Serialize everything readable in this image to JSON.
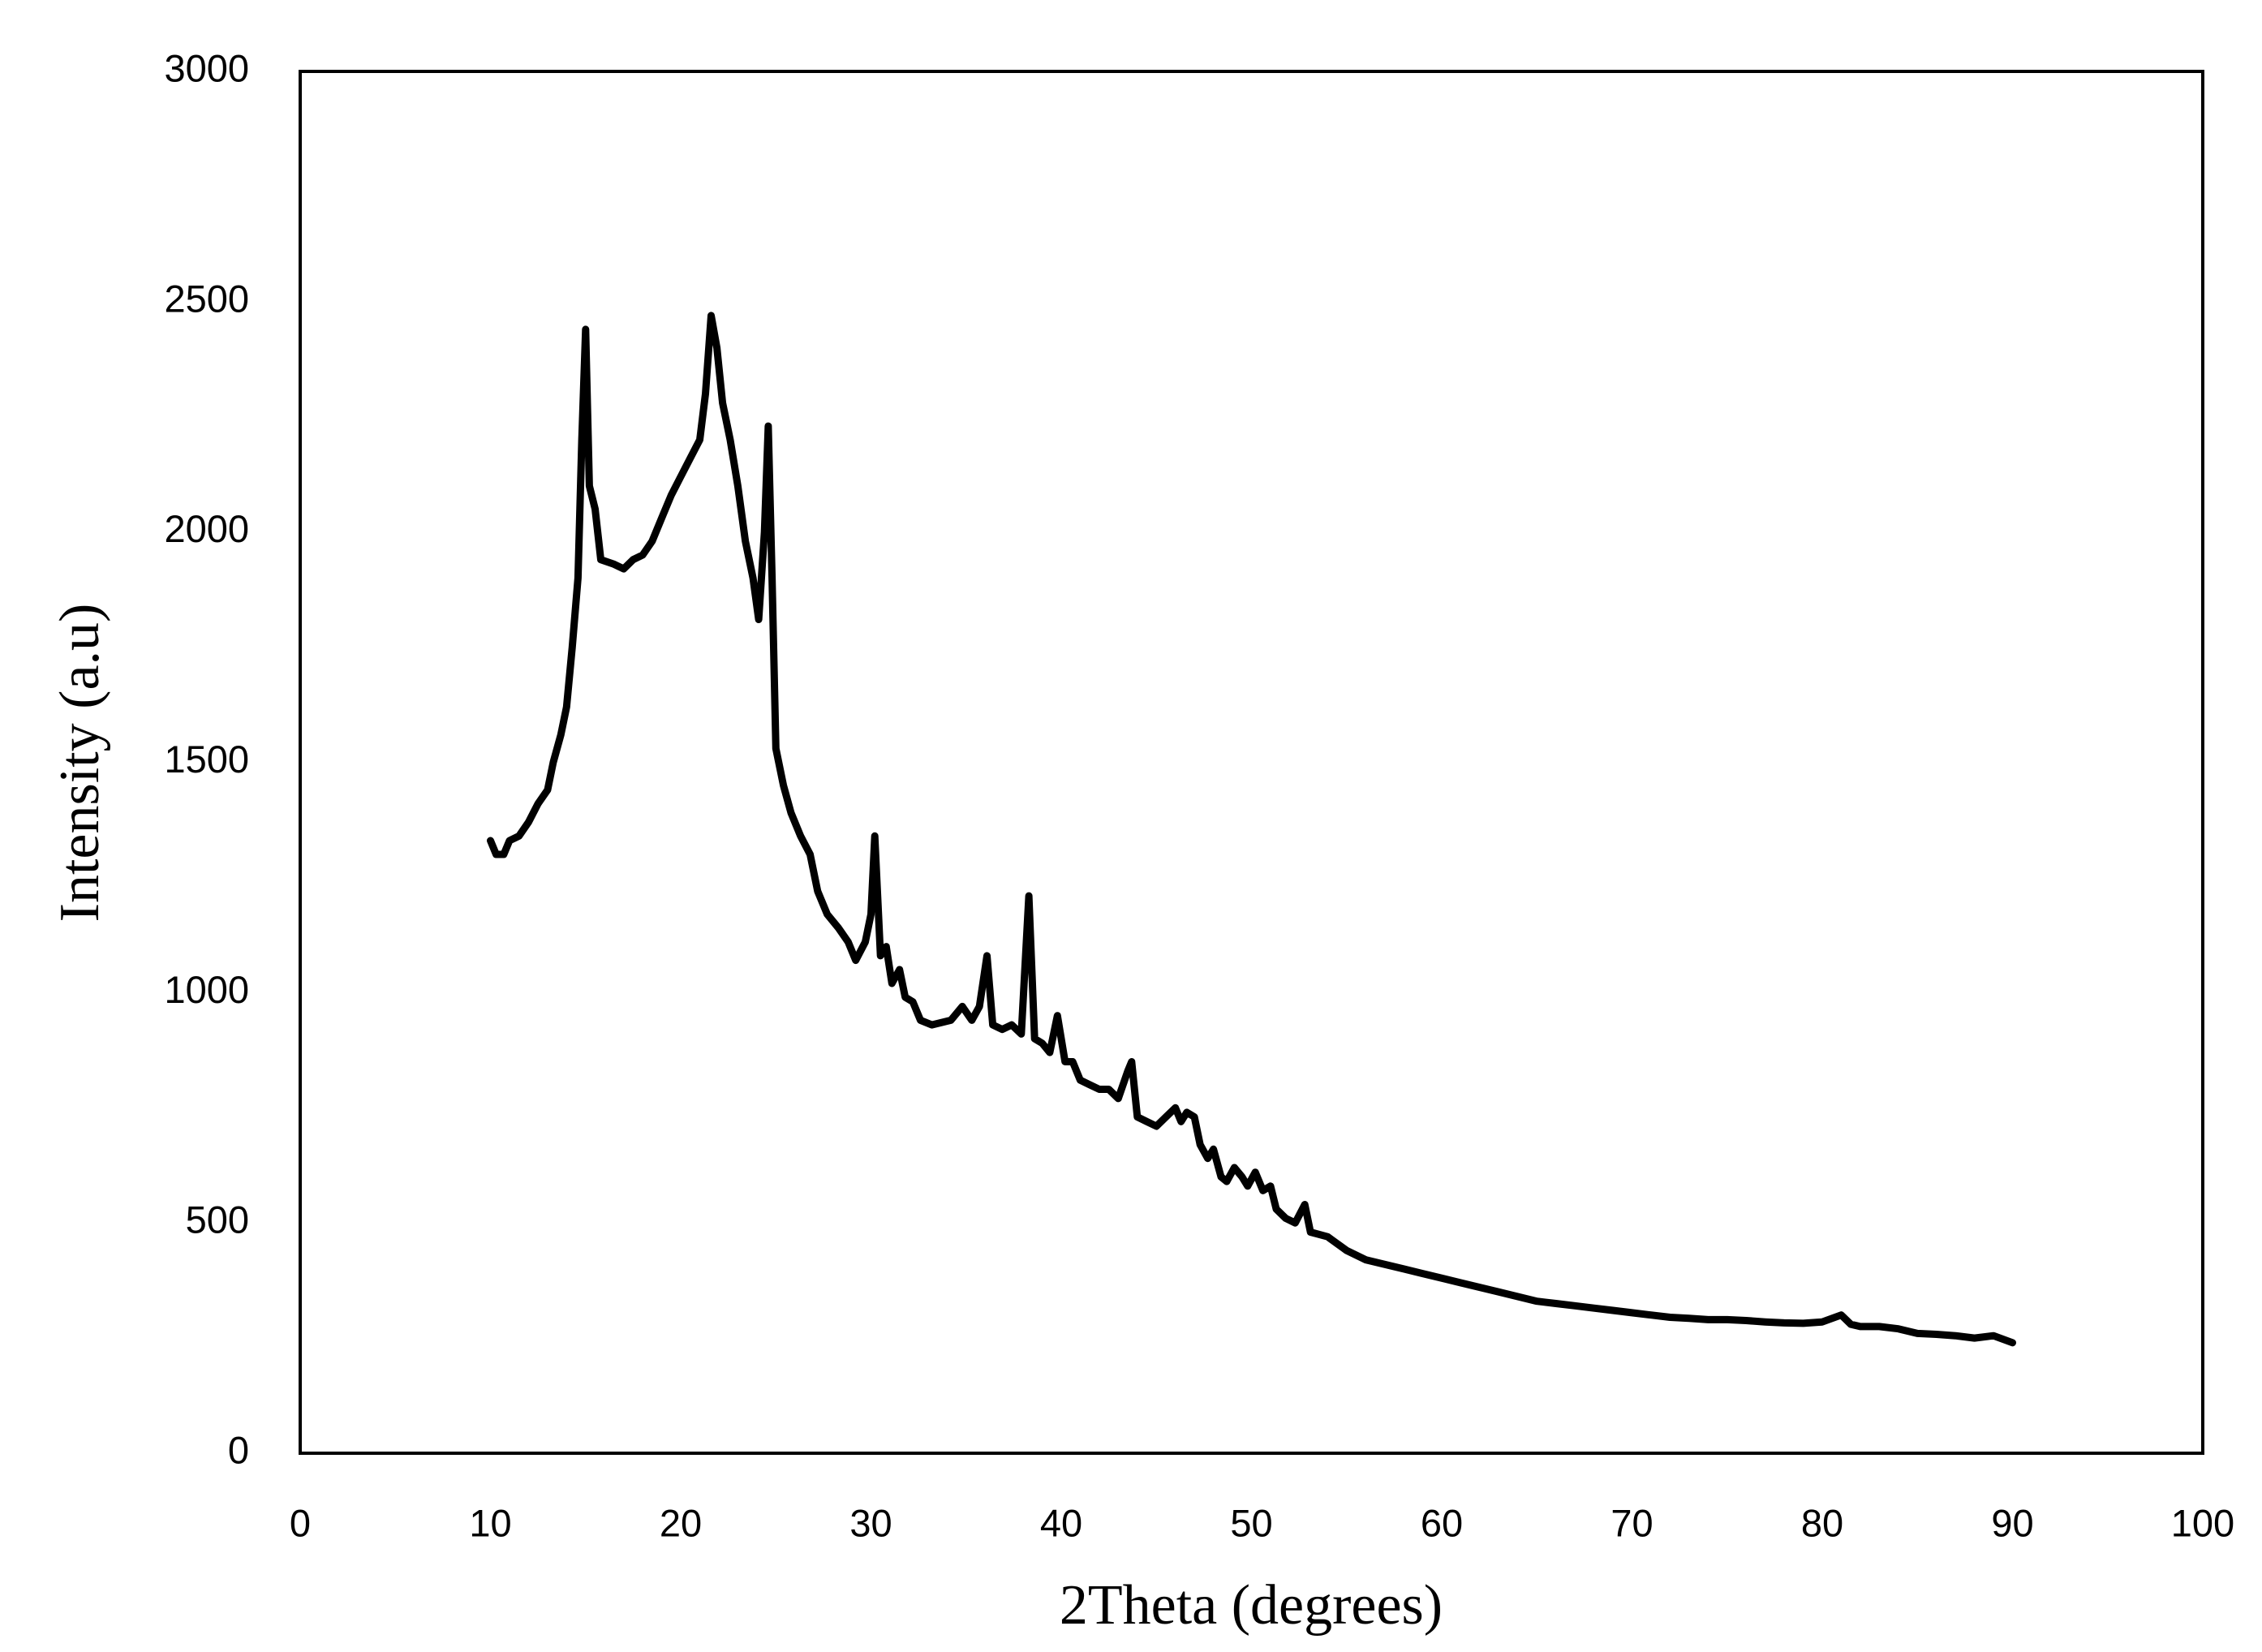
{
  "chart_data": {
    "type": "line",
    "xlabel": "2Theta (degrees)",
    "ylabel": "Intensity (a.u)",
    "color": "#000000",
    "x": [
      10,
      10.3,
      10.7,
      11,
      11.5,
      12,
      12.5,
      13,
      13.3,
      13.7,
      14,
      14.3,
      14.6,
      14.8,
      15,
      15.2,
      15.5,
      15.8,
      16.5,
      17,
      17.5,
      18,
      18.5,
      19,
      19.5,
      20,
      20.5,
      21,
      21.3,
      21.6,
      21.9,
      22.2,
      22.6,
      23,
      23.4,
      23.8,
      24.1,
      24.4,
      24.6,
      24.8,
      25,
      25.4,
      25.8,
      26.3,
      26.8,
      27.2,
      27.7,
      28.3,
      28.8,
      29.2,
      29.7,
      30,
      30.2,
      30.5,
      30.8,
      31.1,
      31.5,
      31.8,
      32.2,
      32.6,
      33.2,
      33.7,
      34.2,
      34.8,
      35.3,
      35.7,
      36.1,
      36.4,
      36.9,
      37.4,
      37.9,
      38.3,
      38.6,
      39,
      39.4,
      39.8,
      40.2,
      40.6,
      41,
      41.5,
      42,
      42.5,
      43,
      43.5,
      43.7,
      44,
      44.5,
      45,
      45.5,
      46,
      46.3,
      46.6,
      47,
      47.3,
      47.7,
      48,
      48.4,
      48.7,
      49.1,
      49.5,
      49.8,
      50.2,
      50.6,
      51,
      51.3,
      51.8,
      52.3,
      52.8,
      53.1,
      54,
      55,
      56,
      57,
      58,
      59,
      60,
      61,
      62,
      63,
      64,
      65,
      66,
      67,
      68,
      69,
      70,
      71,
      72,
      73,
      74,
      75,
      76,
      77,
      78,
      79,
      80,
      81,
      81.5,
      82,
      83,
      84,
      85,
      86,
      87,
      88,
      89,
      90
    ],
    "values": [
      1330,
      1300,
      1300,
      1330,
      1340,
      1370,
      1410,
      1440,
      1500,
      1560,
      1620,
      1750,
      1900,
      2200,
      2440,
      2100,
      2050,
      1940,
      1930,
      1920,
      1940,
      1950,
      1980,
      2030,
      2080,
      2120,
      2160,
      2200,
      2300,
      2470,
      2400,
      2280,
      2200,
      2100,
      1980,
      1900,
      1810,
      2000,
      2230,
      1900,
      1530,
      1450,
      1390,
      1340,
      1300,
      1220,
      1170,
      1140,
      1110,
      1070,
      1110,
      1170,
      1340,
      1080,
      1100,
      1020,
      1050,
      990,
      980,
      940,
      930,
      935,
      940,
      970,
      940,
      970,
      1080,
      930,
      920,
      930,
      910,
      1210,
      900,
      890,
      870,
      950,
      850,
      850,
      810,
      800,
      790,
      790,
      770,
      830,
      850,
      730,
      720,
      710,
      730,
      750,
      720,
      740,
      730,
      670,
      640,
      660,
      600,
      590,
      620,
      600,
      580,
      610,
      570,
      580,
      530,
      510,
      500,
      540,
      480,
      470,
      440,
      420,
      410,
      400,
      390,
      380,
      370,
      360,
      350,
      340,
      330,
      325,
      320,
      315,
      310,
      305,
      300,
      295,
      293,
      290,
      290,
      288,
      285,
      283,
      282,
      285,
      300,
      280,
      275,
      275,
      270,
      260,
      258,
      255,
      250,
      255,
      240
    ],
    "xlim": [
      0,
      100
    ],
    "xticks": [
      0,
      10,
      20,
      30,
      40,
      50,
      60,
      70,
      80,
      90,
      100
    ],
    "ylim": [
      0,
      3000
    ],
    "yticks": [
      0,
      500,
      1000,
      1500,
      2000,
      2500,
      3000
    ]
  }
}
